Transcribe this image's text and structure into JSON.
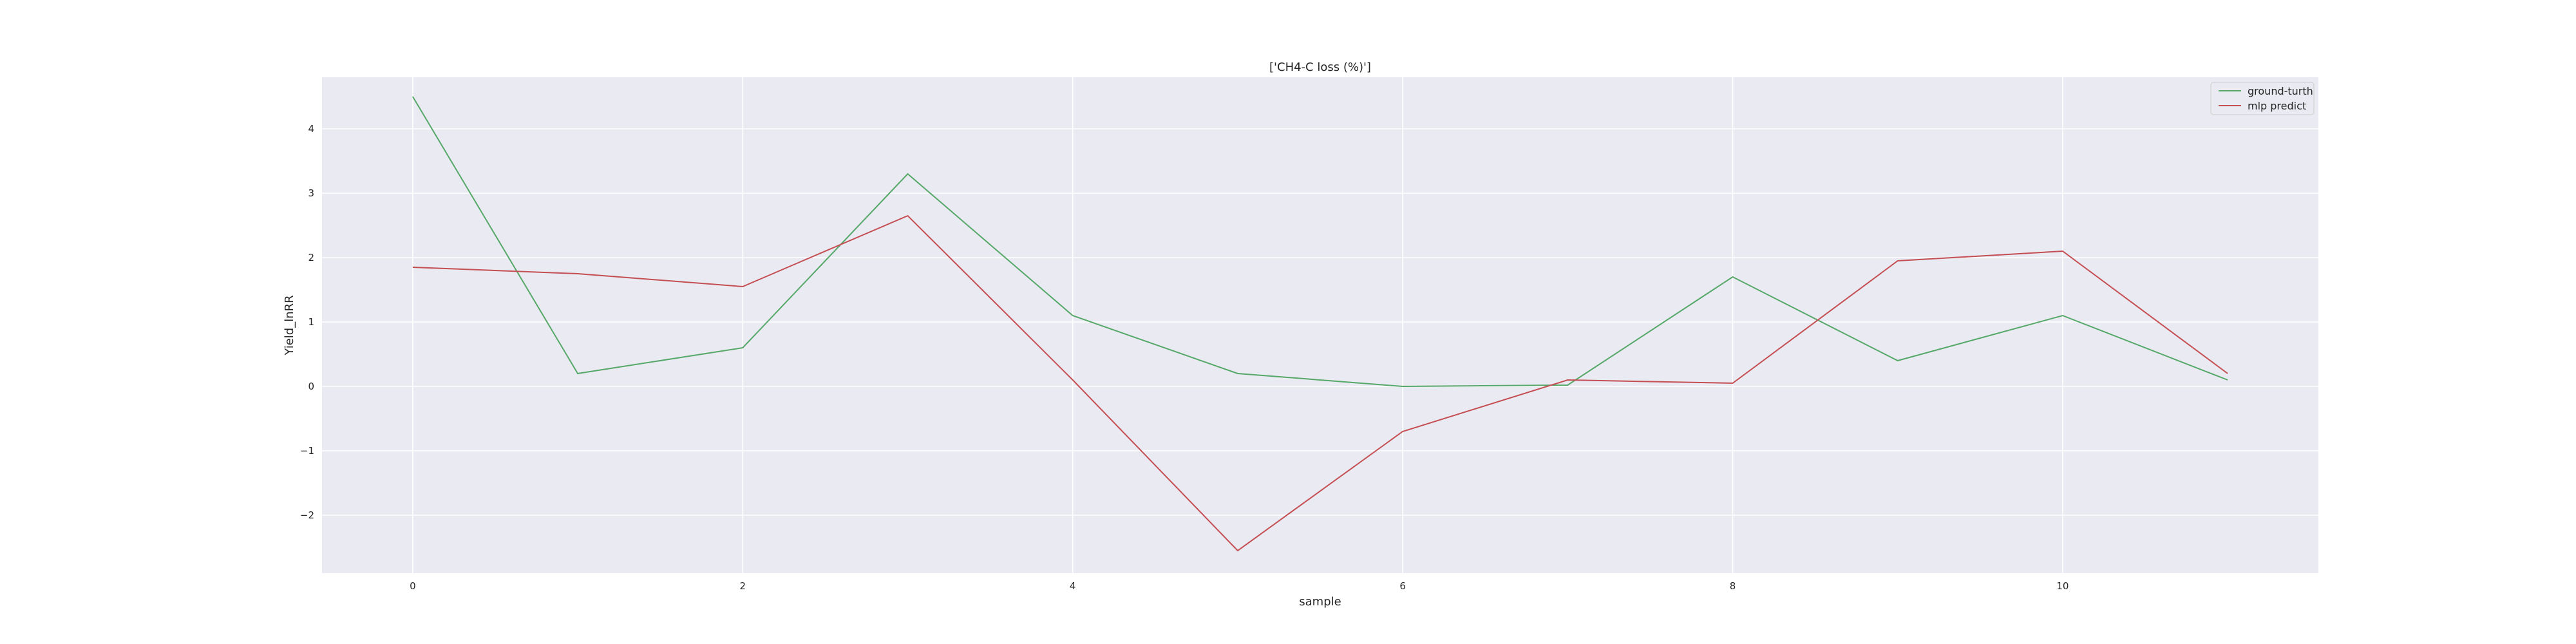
{
  "chart_data": {
    "type": "line",
    "title": "['CH4-C loss (%)']",
    "xlabel": "sample",
    "ylabel": "Yield_lnRR",
    "x": [
      0,
      1,
      2,
      3,
      4,
      5,
      6,
      7,
      8,
      9,
      10,
      11
    ],
    "xlim": [
      -0.55,
      11.55
    ],
    "ylim": [
      -2.9,
      4.8
    ],
    "x_ticks": [
      0,
      2,
      4,
      6,
      8,
      10
    ],
    "x_tick_labels": [
      "0",
      "2",
      "4",
      "6",
      "8",
      "10"
    ],
    "y_ticks": [
      -2,
      -1,
      0,
      1,
      2,
      3,
      4
    ],
    "y_tick_labels": [
      "−2",
      "−1",
      "0",
      "1",
      "2",
      "3",
      "4"
    ],
    "grid": true,
    "legend_position": "top-right",
    "background_color": "#eaeaf2",
    "grid_color": "#ffffff",
    "series": [
      {
        "name": "ground-turth",
        "color": "#55a868",
        "values": [
          4.5,
          0.2,
          0.6,
          3.3,
          1.1,
          0.2,
          0.0,
          0.02,
          1.7,
          0.4,
          1.1,
          0.1
        ]
      },
      {
        "name": "mlp predict",
        "color": "#c44e52",
        "values": [
          1.85,
          1.75,
          1.55,
          2.65,
          0.1,
          -2.55,
          -0.7,
          0.1,
          0.05,
          1.95,
          2.1,
          0.2
        ]
      }
    ]
  }
}
